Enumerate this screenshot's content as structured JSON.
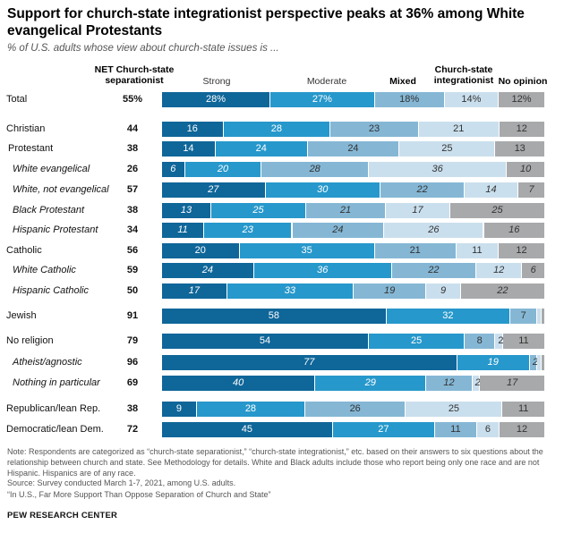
{
  "title": "Support for church-state integrationist perspective peaks at 36% among White evangelical Protestants",
  "subtitle": "% of U.S. adults whose view about church-state issues is ...",
  "colors": {
    "strong": "#0f6699",
    "moderate": "#2798cb",
    "mixed": "#85b7d5",
    "integrationist": "#cadfed",
    "no_opinion": "#a8a9ab"
  },
  "chart_data": {
    "type": "bar",
    "stacked": true,
    "orientation": "horizontal",
    "headers": {
      "net": "NET Church-state separationist",
      "strong": "Strong",
      "moderate": "Moderate",
      "mixed": "Mixed",
      "integrationist": "Church-state integrationist",
      "no_opinion": "No opinion"
    },
    "rows": [
      {
        "label": "Total",
        "italic": false,
        "net": "55%",
        "values": [
          28,
          27,
          18,
          14,
          12
        ],
        "labels": [
          "28%",
          "27%",
          "18%",
          "14%",
          "12%"
        ]
      },
      {
        "label": "Christian",
        "italic": false,
        "net": "44",
        "values": [
          16,
          28,
          23,
          21,
          12
        ],
        "labels": [
          "16",
          "28",
          "23",
          "21",
          "12"
        ]
      },
      {
        "label": "Protestant",
        "italic": false,
        "net": "38",
        "values": [
          14,
          24,
          24,
          25,
          13
        ],
        "labels": [
          "14",
          "24",
          "24",
          "25",
          "13"
        ]
      },
      {
        "label": "White evangelical",
        "italic": true,
        "net": "26",
        "values": [
          6,
          20,
          28,
          36,
          10
        ],
        "labels": [
          "6",
          "20",
          "28",
          "36",
          "10"
        ]
      },
      {
        "label": "White, not evangelical",
        "italic": true,
        "net": "57",
        "values": [
          27,
          30,
          22,
          14,
          7
        ],
        "labels": [
          "27",
          "30",
          "22",
          "14",
          "7"
        ]
      },
      {
        "label": "Black Protestant",
        "italic": true,
        "net": "38",
        "values": [
          13,
          25,
          21,
          17,
          25
        ],
        "labels": [
          "13",
          "25",
          "21",
          "17",
          "25"
        ]
      },
      {
        "label": "Hispanic Protestant",
        "italic": true,
        "net": "34",
        "values": [
          11,
          23,
          24,
          26,
          16
        ],
        "labels": [
          "11",
          "23",
          "24",
          "26",
          "16"
        ]
      },
      {
        "label": "Catholic",
        "italic": false,
        "net": "56",
        "values": [
          20,
          35,
          21,
          11,
          12
        ],
        "labels": [
          "20",
          "35",
          "21",
          "11",
          "12"
        ]
      },
      {
        "label": "White Catholic",
        "italic": true,
        "net": "59",
        "values": [
          24,
          36,
          22,
          12,
          6
        ],
        "labels": [
          "24",
          "36",
          "22",
          "12",
          "6"
        ]
      },
      {
        "label": "Hispanic Catholic",
        "italic": true,
        "net": "50",
        "values": [
          17,
          33,
          19,
          9,
          22
        ],
        "labels": [
          "17",
          "33",
          "19",
          "9",
          "22"
        ]
      },
      {
        "label": "Jewish",
        "italic": false,
        "net": "91",
        "values": [
          58,
          32,
          7,
          1,
          1
        ],
        "labels": [
          "58",
          "32",
          "7",
          "",
          ""
        ]
      },
      {
        "label": "No religion",
        "italic": false,
        "net": "79",
        "values": [
          54,
          25,
          8,
          2,
          11
        ],
        "labels": [
          "54",
          "25",
          "8",
          "2",
          "11"
        ]
      },
      {
        "label": "Atheist/agnostic",
        "italic": true,
        "net": "96",
        "values": [
          77,
          19,
          2,
          1,
          1
        ],
        "labels": [
          "77",
          "19",
          "2",
          "",
          ""
        ]
      },
      {
        "label": "Nothing in particular",
        "italic": true,
        "net": "69",
        "values": [
          40,
          29,
          12,
          2,
          17
        ],
        "labels": [
          "40",
          "29",
          "12",
          "2",
          "17"
        ]
      },
      {
        "label": "Republican/lean Rep.",
        "italic": false,
        "net": "38",
        "values": [
          9,
          28,
          26,
          25,
          11
        ],
        "labels": [
          "9",
          "28",
          "26",
          "25",
          "11"
        ]
      },
      {
        "label": "Democratic/lean Dem.",
        "italic": false,
        "net": "72",
        "values": [
          45,
          27,
          11,
          6,
          12
        ],
        "labels": [
          "45",
          "27",
          "11",
          "6",
          "12"
        ]
      }
    ]
  },
  "note": "Note: Respondents are categorized as “church-state separationist,” “church-state integrationist,” etc. based on their answers to six questions about the relationship between church and state. See Methodology for details. White and Black adults include those who report being only one race and are not Hispanic. Hispanics are of any race.",
  "source": "Source: Survey conducted March 1-7, 2021, among U.S. adults.",
  "citation": "“In U.S., Far More Support Than Oppose Separation of Church and State”",
  "brand": "PEW RESEARCH CENTER"
}
